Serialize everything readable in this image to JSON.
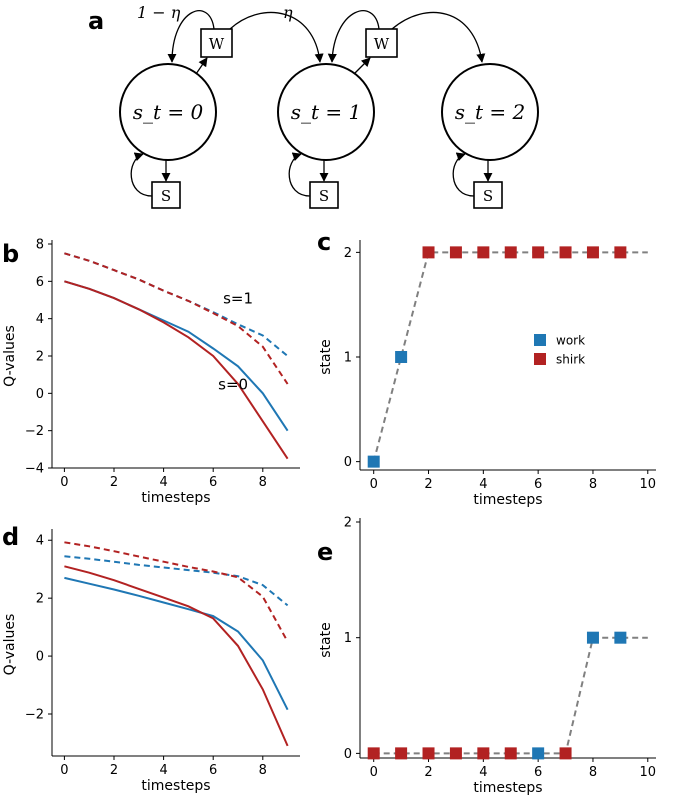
{
  "diagram": {
    "letter": "a",
    "states": [
      "s_t = 0",
      "s_t = 1",
      "s_t = 2"
    ],
    "work_box": "W",
    "shirk_box": "S",
    "prob_fail": "1 − η",
    "prob_success": "η"
  },
  "colors": {
    "work": "#1f77b4",
    "shirk": "#b22222",
    "path": "#808080"
  },
  "chart_data": [
    {
      "panel": "b",
      "type": "line",
      "xlabel": "timesteps",
      "ylabel": "Q-values",
      "xlim": [
        -0.5,
        9.5
      ],
      "ylim": [
        -4,
        8
      ],
      "xticks": [
        0,
        2,
        4,
        6,
        8
      ],
      "yticks": [
        -4,
        -2,
        0,
        2,
        4,
        6,
        8
      ],
      "annotations": [
        {
          "text": "s=1",
          "x": 6.4,
          "y": 4.8
        },
        {
          "text": "s=0",
          "x": 6.2,
          "y": 0.2
        }
      ],
      "x": [
        0,
        1,
        2,
        3,
        4,
        5,
        6,
        7,
        8,
        9
      ],
      "series": [
        {
          "color": "work",
          "dash": false,
          "values": [
            6.0,
            5.6,
            5.1,
            4.5,
            3.9,
            3.3,
            2.4,
            1.45,
            0.0,
            -2.0
          ]
        },
        {
          "color": "shirk",
          "dash": false,
          "values": [
            6.0,
            5.6,
            5.1,
            4.5,
            3.8,
            3.0,
            2.0,
            0.5,
            -1.5,
            -3.5
          ]
        },
        {
          "color": "work",
          "dash": true,
          "values": [
            7.5,
            7.1,
            6.6,
            6.1,
            5.5,
            4.95,
            4.35,
            3.7,
            3.1,
            2.0
          ]
        },
        {
          "color": "shirk",
          "dash": true,
          "values": [
            7.5,
            7.1,
            6.6,
            6.1,
            5.5,
            4.95,
            4.3,
            3.6,
            2.5,
            0.5
          ]
        }
      ]
    },
    {
      "panel": "c",
      "type": "scatter",
      "xlabel": "timesteps",
      "ylabel": "state",
      "xlim": [
        -0.5,
        10.3
      ],
      "ylim": [
        -0.08,
        2.08
      ],
      "xticks": [
        0,
        2,
        4,
        6,
        8,
        10
      ],
      "yticks": [
        0,
        1,
        2
      ],
      "legend": {
        "placement": "center-right",
        "entries": [
          {
            "label": "work",
            "color": "work"
          },
          {
            "label": "shirk",
            "color": "shirk"
          }
        ]
      },
      "x": [
        0,
        1,
        2,
        3,
        4,
        5,
        6,
        7,
        8,
        9
      ],
      "states": [
        0,
        1,
        2,
        2,
        2,
        2,
        2,
        2,
        2,
        2
      ],
      "actions": [
        "work",
        "work",
        "shirk",
        "shirk",
        "shirk",
        "shirk",
        "shirk",
        "shirk",
        "shirk",
        "shirk"
      ],
      "path_extends_to": 10
    },
    {
      "panel": "d",
      "type": "line",
      "xlabel": "timesteps",
      "ylabel": "Q-values",
      "xlim": [
        -0.5,
        9.5
      ],
      "ylim": [
        -3.45,
        4.25
      ],
      "xticks": [
        0,
        2,
        4,
        6,
        8
      ],
      "yticks": [
        -2,
        0,
        2,
        4
      ],
      "x": [
        0,
        1,
        2,
        3,
        4,
        5,
        6,
        7,
        8,
        9
      ],
      "series": [
        {
          "color": "work",
          "dash": false,
          "values": [
            2.7,
            2.5,
            2.3,
            2.08,
            1.85,
            1.62,
            1.38,
            0.85,
            -0.15,
            -1.85
          ]
        },
        {
          "color": "shirk",
          "dash": false,
          "values": [
            3.1,
            2.88,
            2.62,
            2.32,
            2.02,
            1.72,
            1.3,
            0.35,
            -1.15,
            -3.1
          ]
        },
        {
          "color": "work",
          "dash": true,
          "values": [
            3.45,
            3.36,
            3.26,
            3.15,
            3.06,
            2.97,
            2.88,
            2.76,
            2.45,
            1.75
          ]
        },
        {
          "color": "shirk",
          "dash": true,
          "values": [
            3.93,
            3.79,
            3.62,
            3.44,
            3.26,
            3.08,
            2.92,
            2.72,
            2.05,
            0.5
          ]
        }
      ]
    },
    {
      "panel": "e",
      "type": "scatter",
      "xlabel": "timesteps",
      "ylabel": "state",
      "xlim": [
        -0.5,
        10.3
      ],
      "ylim": [
        -0.04,
        2.0
      ],
      "xticks": [
        0,
        2,
        4,
        6,
        8,
        10
      ],
      "yticks": [
        0,
        1,
        2
      ],
      "x": [
        0,
        1,
        2,
        3,
        4,
        5,
        6,
        7,
        8,
        9
      ],
      "states": [
        0,
        0,
        0,
        0,
        0,
        0,
        0,
        0,
        1,
        1
      ],
      "actions": [
        "shirk",
        "shirk",
        "shirk",
        "shirk",
        "shirk",
        "shirk",
        "work",
        "shirk",
        "work",
        "work"
      ],
      "path_extends_to": 10
    }
  ]
}
